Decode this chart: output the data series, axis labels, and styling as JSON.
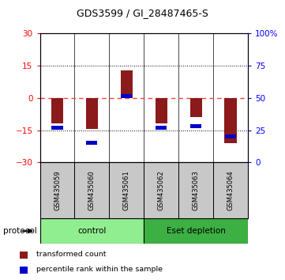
{
  "title": "GDS3599 / GI_28487465-S",
  "samples": [
    "GSM435059",
    "GSM435060",
    "GSM435061",
    "GSM435062",
    "GSM435063",
    "GSM435064"
  ],
  "red_values": [
    -12.0,
    -14.5,
    13.0,
    -12.0,
    -9.0,
    -21.0
  ],
  "blue_values": [
    -14.0,
    -21.0,
    1.0,
    -14.0,
    -13.0,
    -18.0
  ],
  "ylim_left": [
    -30,
    30
  ],
  "ylim_right": [
    0,
    100
  ],
  "yticks_left": [
    -30,
    -15,
    0,
    15,
    30
  ],
  "yticks_right": [
    0,
    25,
    50,
    75,
    100
  ],
  "groups": [
    {
      "label": "control",
      "start": 0,
      "end": 2,
      "color": "#90EE90"
    },
    {
      "label": "Eset depletion",
      "start": 3,
      "end": 5,
      "color": "#3CB043"
    }
  ],
  "red_color": "#8B1A1A",
  "blue_color": "#0000CC",
  "protocol_label": "protocol",
  "legend_red": "transformed count",
  "legend_blue": "percentile rank within the sample",
  "background_color": "#ffffff",
  "zero_line_color": "#FF4444",
  "dotted_color": "#000000",
  "sample_box_color": "#C8C8C8",
  "sample_box_edge": "#000000"
}
